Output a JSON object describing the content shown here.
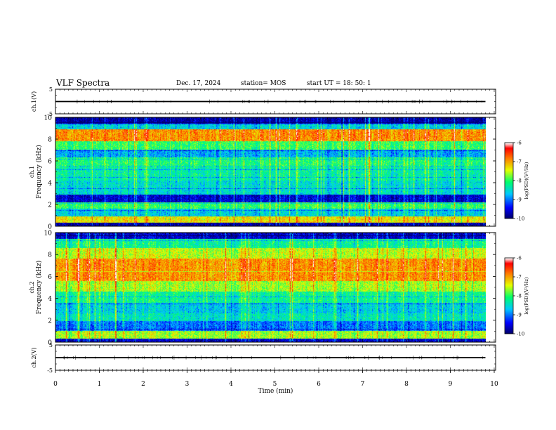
{
  "header": {
    "title": "VLF Spectra",
    "date": "Dec. 17, 2024",
    "station": "station= MOS",
    "start": "start  UT =   18: 50: 1"
  },
  "chart_data": [
    {
      "type": "line",
      "name": "ch1-waveform",
      "ylabel": "ch.1(V)",
      "ylim": [
        -5,
        5
      ],
      "yticks": [
        "5",
        "-5"
      ],
      "xlim": [
        0,
        10
      ],
      "x": [
        0,
        9.8
      ],
      "y": [
        0,
        0
      ]
    },
    {
      "type": "heatmap",
      "name": "ch1-spectrogram",
      "ylabel": "Frequency (kHz)",
      "channel_label": "ch.1",
      "ylim": [
        0,
        10
      ],
      "yticks": [
        "0",
        "2",
        "4",
        "6",
        "8",
        "10"
      ],
      "xlim": [
        0,
        9.8
      ],
      "bands_khz": [
        {
          "from": 0.0,
          "to": 0.3,
          "level": -9.8
        },
        {
          "from": 0.3,
          "to": 0.9,
          "level": -7.3
        },
        {
          "from": 0.9,
          "to": 1.6,
          "level": -8.6
        },
        {
          "from": 1.6,
          "to": 2.2,
          "level": -8.0
        },
        {
          "from": 2.2,
          "to": 2.9,
          "level": -9.6
        },
        {
          "from": 2.9,
          "to": 4.2,
          "level": -8.5
        },
        {
          "from": 4.2,
          "to": 5.4,
          "level": -8.3
        },
        {
          "from": 5.4,
          "to": 6.3,
          "level": -8.1
        },
        {
          "from": 6.3,
          "to": 7.0,
          "level": -8.8
        },
        {
          "from": 7.0,
          "to": 7.8,
          "level": -8.0
        },
        {
          "from": 7.8,
          "to": 8.9,
          "level": -6.9
        },
        {
          "from": 8.9,
          "to": 9.4,
          "level": -8.6
        },
        {
          "from": 9.4,
          "to": 10.0,
          "level": -9.8
        }
      ],
      "colorbar": {
        "label": "log(PSD)(V²/Hz)",
        "range": [
          -10,
          -6
        ],
        "ticks": [
          "-6",
          "-7",
          "-8",
          "-9",
          "-10"
        ]
      }
    },
    {
      "type": "heatmap",
      "name": "ch2-spectrogram",
      "ylabel": "Frequency (kHz)",
      "channel_label": "ch.2",
      "ylim": [
        0,
        10
      ],
      "yticks": [
        "0",
        "2",
        "4",
        "6",
        "8",
        "10"
      ],
      "xlim": [
        0,
        9.8
      ],
      "bands_khz": [
        {
          "from": 0.0,
          "to": 0.3,
          "level": -9.6
        },
        {
          "from": 0.3,
          "to": 1.0,
          "level": -7.6
        },
        {
          "from": 1.0,
          "to": 1.9,
          "level": -9.0
        },
        {
          "from": 1.9,
          "to": 2.6,
          "level": -8.4
        },
        {
          "from": 2.6,
          "to": 3.6,
          "level": -8.6
        },
        {
          "from": 3.6,
          "to": 4.6,
          "level": -8.2
        },
        {
          "from": 4.6,
          "to": 5.6,
          "level": -7.6
        },
        {
          "from": 5.6,
          "to": 7.6,
          "level": -6.9
        },
        {
          "from": 7.6,
          "to": 8.6,
          "level": -7.5
        },
        {
          "from": 8.6,
          "to": 9.4,
          "level": -8.2
        },
        {
          "from": 9.4,
          "to": 10.0,
          "level": -9.6
        }
      ],
      "colorbar": {
        "label": "log(PSD)(V²/Hz)",
        "range": [
          -10,
          -6
        ],
        "ticks": [
          "-6",
          "-7",
          "-8",
          "-9",
          "-10"
        ]
      }
    },
    {
      "type": "line",
      "name": "ch2-waveform",
      "ylabel": "ch.2(V)",
      "ylim": [
        -5,
        5
      ],
      "yticks": [
        "5",
        "-5"
      ],
      "xlim": [
        0,
        10
      ],
      "x": [
        0,
        9.8
      ],
      "y": [
        0,
        0
      ]
    }
  ],
  "x_axis": {
    "label": "Time (min)",
    "ticks": [
      "0",
      "1",
      "2",
      "3",
      "4",
      "5",
      "6",
      "7",
      "8",
      "9",
      "10"
    ],
    "range": [
      0,
      10
    ]
  },
  "colors": [
    "#00007f",
    "#0000ff",
    "#00c0ff",
    "#00ff80",
    "#ffff00",
    "#ff7f00",
    "#ff0000",
    "#ffffff"
  ]
}
